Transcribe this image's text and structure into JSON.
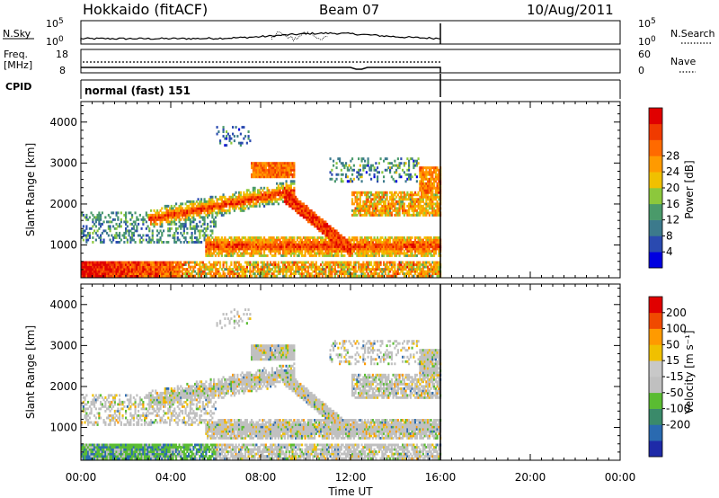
{
  "header": {
    "station": "Hokkaido (fitACF)",
    "beam": "Beam 07",
    "date": "10/Aug/2011"
  },
  "top_panels": {
    "nsky": {
      "label": "N.Sky",
      "tick_top": "10^5",
      "tick_bottom": "10^0",
      "right_label": "N.Search",
      "right_tick_top": "10^5",
      "right_tick_bottom": "10^0"
    },
    "freq": {
      "label_line1": "Freq.",
      "label_line2": "[MHz]",
      "tick_top": "18",
      "tick_bottom": "8",
      "right_label": "Nave",
      "right_tick_top": "60",
      "right_tick_bottom": "0"
    },
    "cpid": {
      "label": "CPID",
      "value": "normal (fast) 151"
    }
  },
  "chart_data": [
    {
      "type": "heatmap",
      "name": "power",
      "ylabel": "Slant Range [km]",
      "ylim": [
        200,
        4500
      ],
      "yticks": [
        "1000",
        "2000",
        "3000",
        "4000"
      ],
      "xlim_hours": [
        0,
        24
      ],
      "data_end_hour": 16,
      "colorbar": {
        "label": "Power [dB]",
        "ticks": [
          "4",
          "8",
          "12",
          "16",
          "20",
          "24",
          "28"
        ],
        "colors": [
          "#0000e0",
          "#2a4ab0",
          "#3c7a8c",
          "#4a9a6a",
          "#8cc83c",
          "#f0c000",
          "#ff9a00",
          "#ff6a00",
          "#f03a00",
          "#e00000"
        ]
      }
    },
    {
      "type": "heatmap",
      "name": "velocity",
      "ylabel": "Slant Range [km]",
      "ylim": [
        200,
        4500
      ],
      "yticks": [
        "1000",
        "2000",
        "3000",
        "4000"
      ],
      "xlim_hours": [
        0,
        24
      ],
      "data_end_hour": 16,
      "colorbar": {
        "label": "Velocity [m s⁻¹]",
        "ticks": [
          "200",
          "100",
          "50",
          "15",
          "-15",
          "-50",
          "-100",
          "-200"
        ],
        "colors": [
          "#1e2aa8",
          "#2a6ab0",
          "#3a8a6a",
          "#5abc32",
          "#c0c0c0",
          "#c8c8c8",
          "#f0c000",
          "#ff9a00",
          "#f04a00",
          "#e00000"
        ]
      }
    }
  ],
  "xaxis": {
    "label": "Time UT",
    "ticks": [
      "00:00",
      "04:00",
      "08:00",
      "12:00",
      "16:00",
      "20:00",
      "00:00"
    ]
  }
}
